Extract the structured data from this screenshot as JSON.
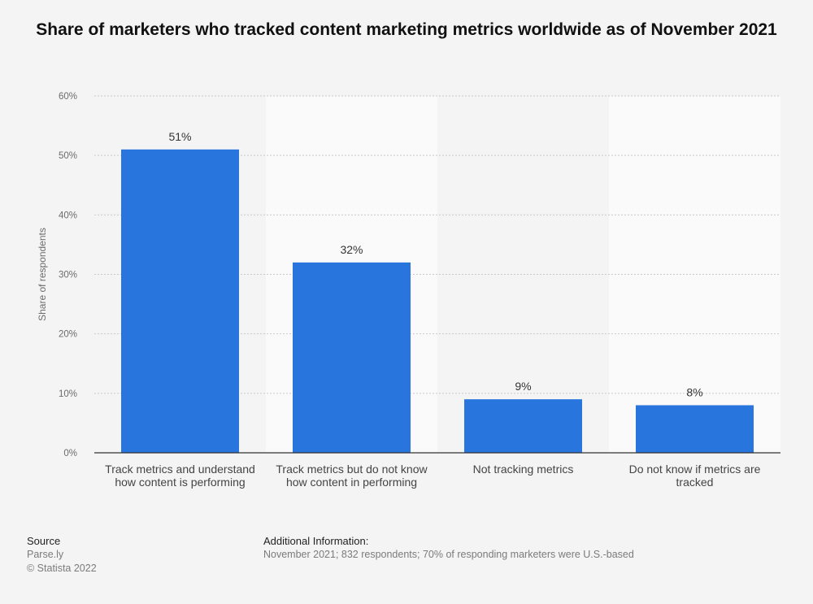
{
  "chart_data": {
    "type": "bar",
    "title": "Share of marketers who tracked content marketing metrics worldwide as of November 2021",
    "ylabel": "Share of respondents",
    "xlabel": "",
    "ylim": [
      0,
      60
    ],
    "yticks": [
      0,
      10,
      20,
      30,
      40,
      50,
      60
    ],
    "ytick_suffix": "%",
    "categories": [
      [
        "Track metrics and understand",
        "how content is performing"
      ],
      [
        "Track metrics but do not know",
        "how content in performing"
      ],
      [
        "Not tracking metrics"
      ],
      [
        "Do not know if metrics are",
        "tracked"
      ]
    ],
    "values": [
      51,
      32,
      9,
      8
    ],
    "value_labels": [
      "51%",
      "32%",
      "9%",
      "8%"
    ],
    "grid": true,
    "bar_color": "#2876dd"
  },
  "footer": {
    "source_heading": "Source",
    "source_name": "Parse.ly",
    "copyright": "© Statista 2022",
    "info_heading": "Additional Information:",
    "info_text": "November 2021; 832 respondents; 70% of responding marketers were U.S.-based"
  }
}
